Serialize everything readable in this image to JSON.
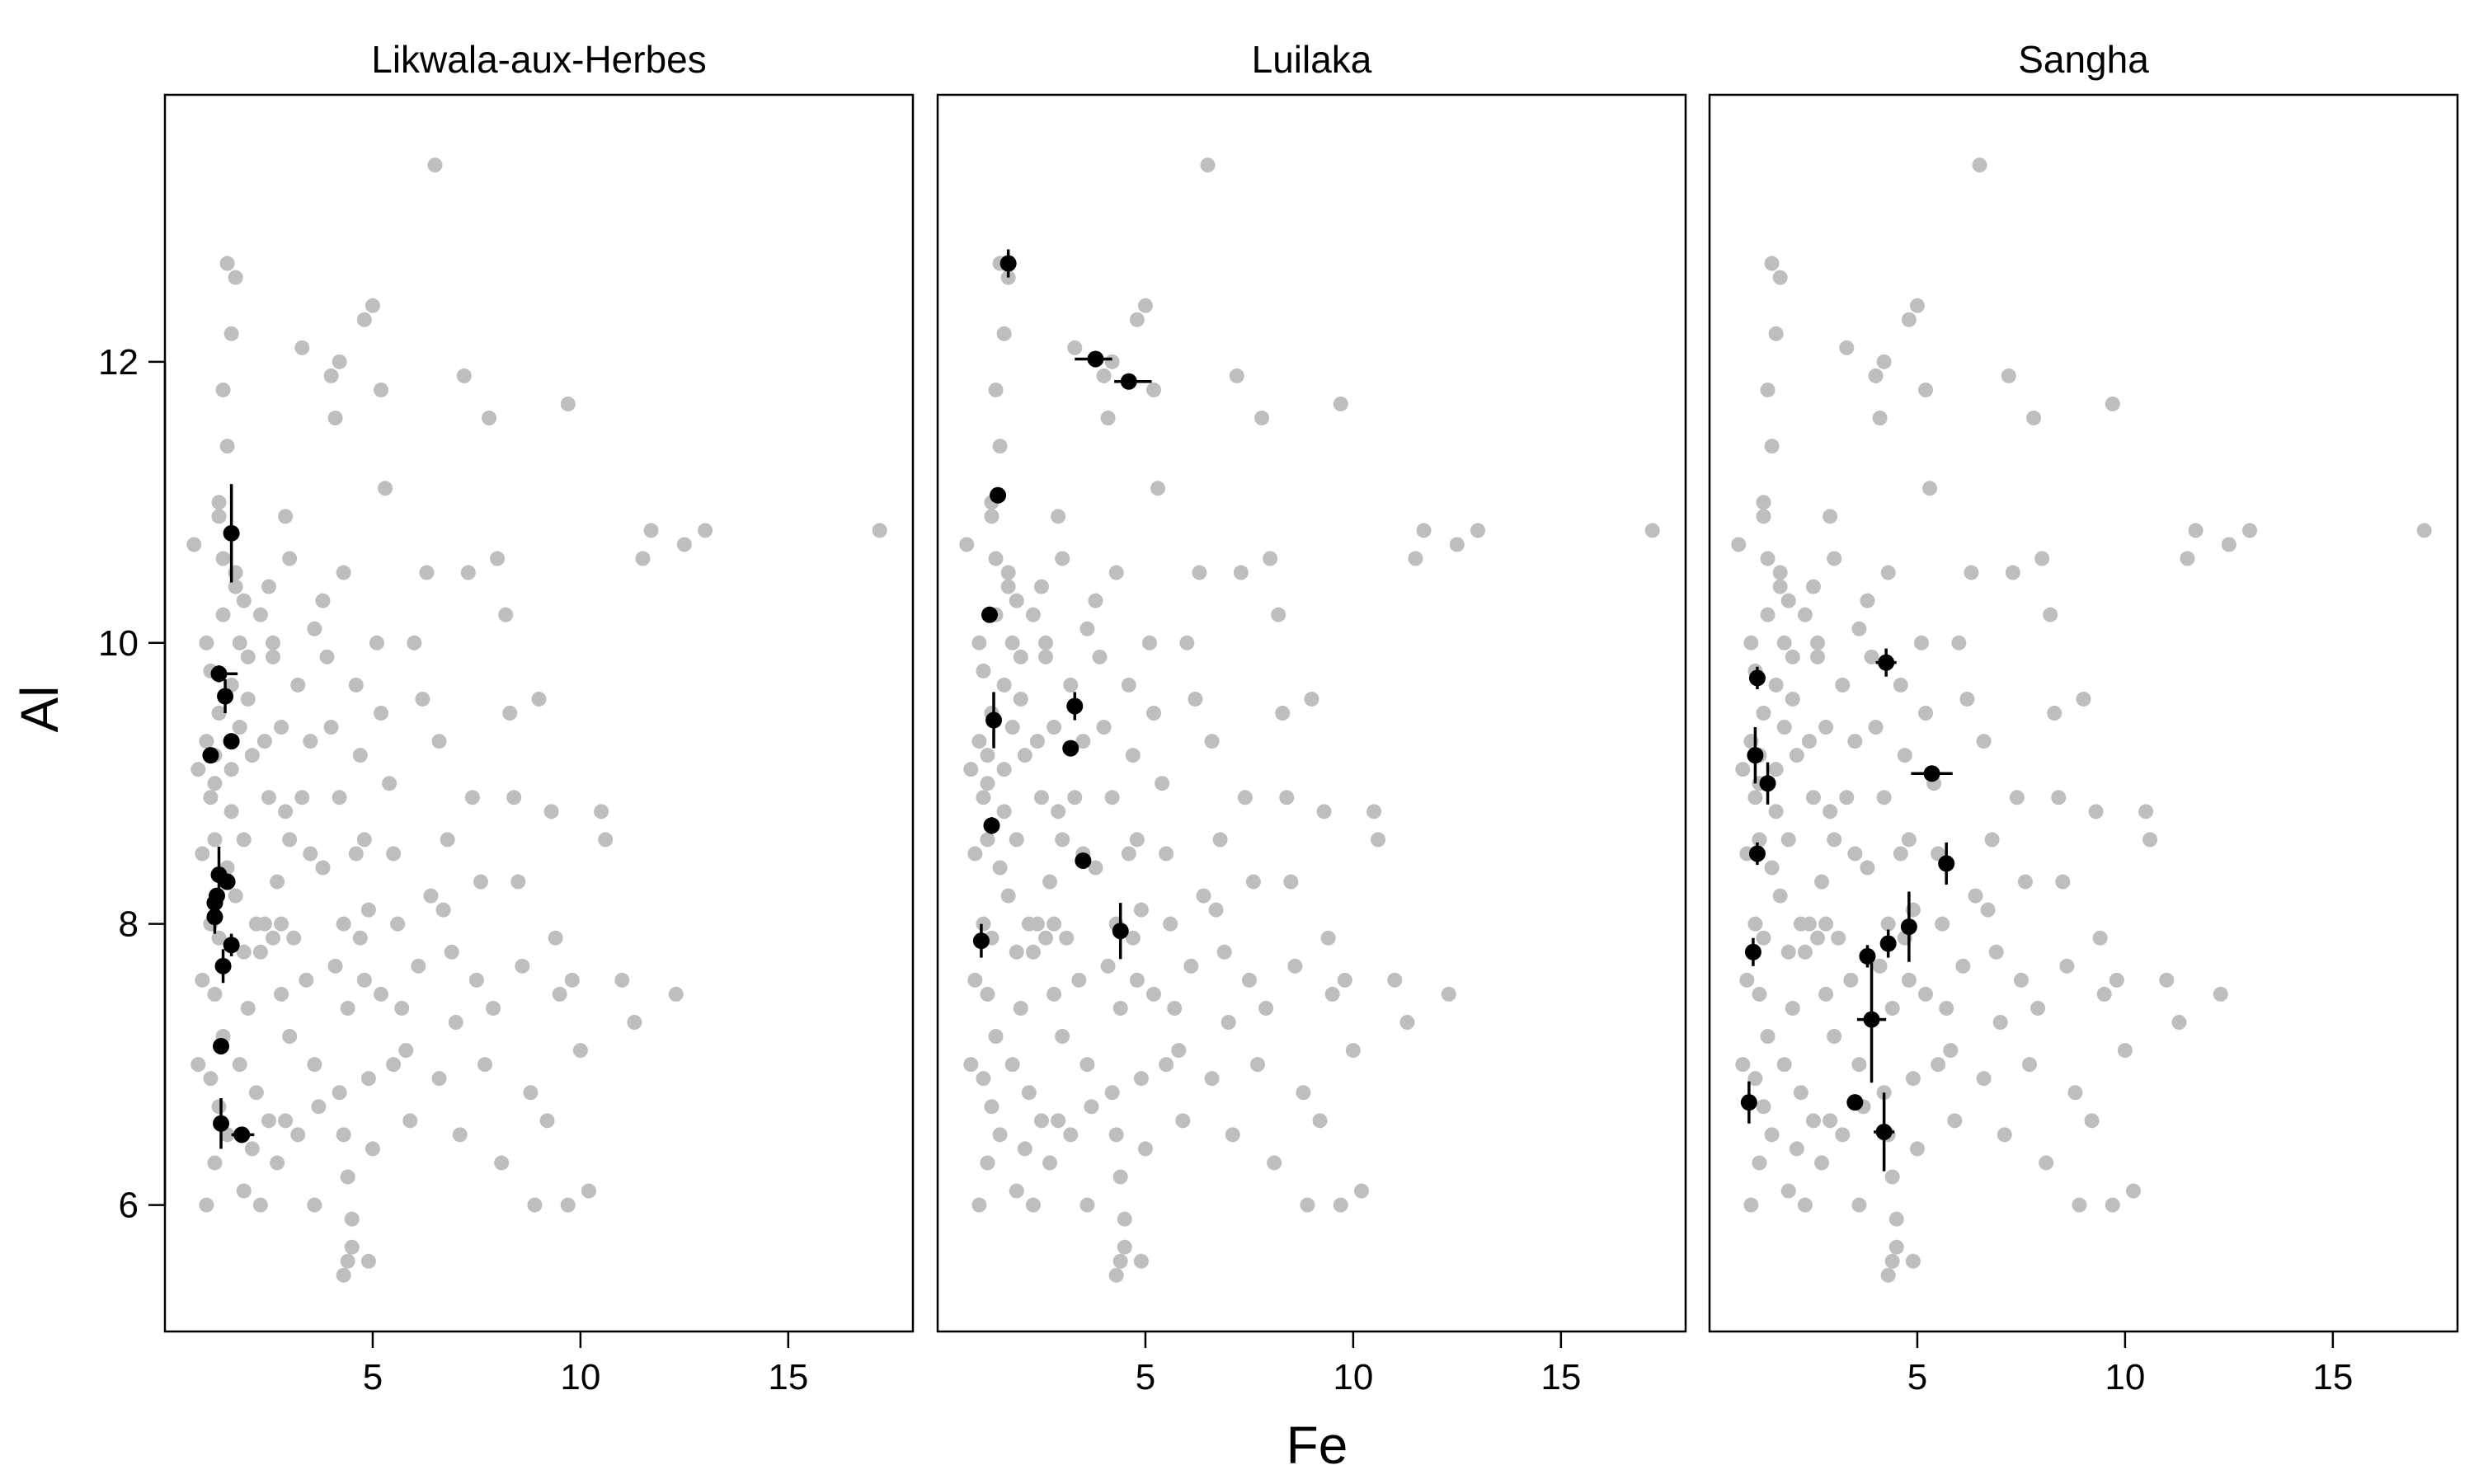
{
  "chart_data": {
    "type": "scatter",
    "xlabel": "Fe",
    "ylabel": "Al",
    "xlim": [
      0.0,
      18.0
    ],
    "ylim": [
      5.1,
      13.9
    ],
    "xticks": [
      5,
      10,
      15
    ],
    "yticks": [
      6,
      8,
      10,
      12
    ],
    "grid": false,
    "colors": {
      "background_points": "#bebebe",
      "highlight_points": "#000000",
      "frame": "#000000"
    },
    "background": [
      [
        1.2,
        9.0
      ],
      [
        1.3,
        9.5
      ],
      [
        1.1,
        9.8
      ],
      [
        1.4,
        10.2
      ],
      [
        1.2,
        8.6
      ],
      [
        1.5,
        8.4
      ],
      [
        1.1,
        8.0
      ],
      [
        1.3,
        7.9
      ],
      [
        1.6,
        8.8
      ],
      [
        1.0,
        9.3
      ],
      [
        1.2,
        7.5
      ],
      [
        1.4,
        7.2
      ],
      [
        1.1,
        6.9
      ],
      [
        1.3,
        6.7
      ],
      [
        1.5,
        6.5
      ],
      [
        1.2,
        6.3
      ],
      [
        1.0,
        6.0
      ],
      [
        1.4,
        10.6
      ],
      [
        1.3,
        11.0
      ],
      [
        1.5,
        11.4
      ],
      [
        1.4,
        11.8
      ],
      [
        1.6,
        12.2
      ],
      [
        1.5,
        12.7
      ],
      [
        1.7,
        12.6
      ],
      [
        1.3,
        10.9
      ],
      [
        1.6,
        9.1
      ],
      [
        1.8,
        9.4
      ],
      [
        1.7,
        8.2
      ],
      [
        1.9,
        7.8
      ],
      [
        0.9,
        8.5
      ],
      [
        0.8,
        9.1
      ],
      [
        0.9,
        7.6
      ],
      [
        0.8,
        7.0
      ],
      [
        0.7,
        10.7
      ],
      [
        1.0,
        10.0
      ],
      [
        1.1,
        8.9
      ],
      [
        1.2,
        9.2
      ],
      [
        1.6,
        9.7
      ],
      [
        1.8,
        10.0
      ],
      [
        1.7,
        10.4
      ],
      [
        2.0,
        9.6
      ],
      [
        2.1,
        9.2
      ],
      [
        1.9,
        8.6
      ],
      [
        2.2,
        8.0
      ],
      [
        2.0,
        7.4
      ],
      [
        1.8,
        7.0
      ],
      [
        2.3,
        7.8
      ],
      [
        2.4,
        8.0
      ],
      [
        2.2,
        6.8
      ],
      [
        2.1,
        6.4
      ],
      [
        1.9,
        6.1
      ],
      [
        2.0,
        9.9
      ],
      [
        2.3,
        10.2
      ],
      [
        2.5,
        10.4
      ],
      [
        2.6,
        9.9
      ],
      [
        2.8,
        9.4
      ],
      [
        2.9,
        8.8
      ],
      [
        2.7,
        8.3
      ],
      [
        2.6,
        7.9
      ],
      [
        2.8,
        7.5
      ],
      [
        3.0,
        7.2
      ],
      [
        2.9,
        6.6
      ],
      [
        2.7,
        6.3
      ],
      [
        3.0,
        10.6
      ],
      [
        2.9,
        10.9
      ],
      [
        3.2,
        9.7
      ],
      [
        3.3,
        12.1
      ],
      [
        3.1,
        7.9
      ],
      [
        3.4,
        7.6
      ],
      [
        3.5,
        8.5
      ],
      [
        3.6,
        7.0
      ],
      [
        3.7,
        6.7
      ],
      [
        3.8,
        8.4
      ],
      [
        3.9,
        9.9
      ],
      [
        4.1,
        11.6
      ],
      [
        4.0,
        11.9
      ],
      [
        4.2,
        12.0
      ],
      [
        4.0,
        9.4
      ],
      [
        4.2,
        8.9
      ],
      [
        4.3,
        8.0
      ],
      [
        4.1,
        7.7
      ],
      [
        4.4,
        7.4
      ],
      [
        4.2,
        6.8
      ],
      [
        4.3,
        6.5
      ],
      [
        4.4,
        6.2
      ],
      [
        4.5,
        5.9
      ],
      [
        4.4,
        5.6
      ],
      [
        4.3,
        5.5
      ],
      [
        4.5,
        5.7
      ],
      [
        4.6,
        9.7
      ],
      [
        4.7,
        9.2
      ],
      [
        4.8,
        8.6
      ],
      [
        4.9,
        8.1
      ],
      [
        4.8,
        7.6
      ],
      [
        4.9,
        6.9
      ],
      [
        5.0,
        6.4
      ],
      [
        5.0,
        12.4
      ],
      [
        4.8,
        12.3
      ],
      [
        5.2,
        11.8
      ],
      [
        5.3,
        11.1
      ],
      [
        5.1,
        10.0
      ],
      [
        5.2,
        9.5
      ],
      [
        5.4,
        9.0
      ],
      [
        5.5,
        8.5
      ],
      [
        5.6,
        8.0
      ],
      [
        5.7,
        7.4
      ],
      [
        5.8,
        7.1
      ],
      [
        6.0,
        10.0
      ],
      [
        6.2,
        9.6
      ],
      [
        6.3,
        10.5
      ],
      [
        6.5,
        13.4
      ],
      [
        6.6,
        9.3
      ],
      [
        6.8,
        8.6
      ],
      [
        6.7,
        8.1
      ],
      [
        6.9,
        7.8
      ],
      [
        7.0,
        7.3
      ],
      [
        7.2,
        11.9
      ],
      [
        7.3,
        10.5
      ],
      [
        7.4,
        8.9
      ],
      [
        7.6,
        8.3
      ],
      [
        7.5,
        7.6
      ],
      [
        7.7,
        7.0
      ],
      [
        7.8,
        11.6
      ],
      [
        8.0,
        10.6
      ],
      [
        8.2,
        10.2
      ],
      [
        8.3,
        9.5
      ],
      [
        8.4,
        8.9
      ],
      [
        8.5,
        8.3
      ],
      [
        8.6,
        7.7
      ],
      [
        8.8,
        6.8
      ],
      [
        8.9,
        6.0
      ],
      [
        9.0,
        9.6
      ],
      [
        9.3,
        8.8
      ],
      [
        9.4,
        7.9
      ],
      [
        9.5,
        7.5
      ],
      [
        9.7,
        11.7
      ],
      [
        9.8,
        7.6
      ],
      [
        10.0,
        7.1
      ],
      [
        10.2,
        6.1
      ],
      [
        10.5,
        8.8
      ],
      [
        10.6,
        8.6
      ],
      [
        11.0,
        7.6
      ],
      [
        11.3,
        7.3
      ],
      [
        11.5,
        10.6
      ],
      [
        11.7,
        10.8
      ],
      [
        12.3,
        7.5
      ],
      [
        12.5,
        10.7
      ],
      [
        13.0,
        10.8
      ],
      [
        17.2,
        10.8
      ],
      [
        3.5,
        9.3
      ],
      [
        3.3,
        8.9
      ],
      [
        3.0,
        8.6
      ],
      [
        2.5,
        8.9
      ],
      [
        2.4,
        9.3
      ],
      [
        1.9,
        10.3
      ],
      [
        1.7,
        10.5
      ],
      [
        2.6,
        10.0
      ],
      [
        2.5,
        6.6
      ],
      [
        2.3,
        6.0
      ],
      [
        4.6,
        8.5
      ],
      [
        4.7,
        7.9
      ],
      [
        5.2,
        7.5
      ],
      [
        5.5,
        7.0
      ],
      [
        5.9,
        6.6
      ],
      [
        6.1,
        7.7
      ],
      [
        6.4,
        8.2
      ],
      [
        6.6,
        6.9
      ],
      [
        7.1,
        6.5
      ],
      [
        7.9,
        7.4
      ],
      [
        8.1,
        6.3
      ],
      [
        9.2,
        6.6
      ],
      [
        9.7,
        6.0
      ],
      [
        3.8,
        10.3
      ],
      [
        3.6,
        10.1
      ],
      [
        4.3,
        10.5
      ],
      [
        3.2,
        6.5
      ],
      [
        3.6,
        6.0
      ],
      [
        4.9,
        5.6
      ],
      [
        2.8,
        8.0
      ]
    ],
    "panels": [
      {
        "title": "Likwala-aux-Herbes",
        "points": [
          {
            "x": 1.6,
            "y": 10.78,
            "xerr": [
              0,
              0
            ],
            "yerr": [
              0.35,
              0.35
            ]
          },
          {
            "x": 1.3,
            "y": 9.78,
            "xerr": [
              0.15,
              0.45
            ],
            "yerr": [
              0.06,
              0.06
            ]
          },
          {
            "x": 1.45,
            "y": 9.62,
            "xerr": [
              0,
              0
            ],
            "yerr": [
              0.12,
              0.12
            ]
          },
          {
            "x": 1.6,
            "y": 9.3,
            "xerr": [
              0,
              0
            ],
            "yerr": [
              0,
              0
            ]
          },
          {
            "x": 1.1,
            "y": 9.2,
            "xerr": [
              0,
              0
            ],
            "yerr": [
              0,
              0
            ]
          },
          {
            "x": 1.3,
            "y": 8.35,
            "xerr": [
              0,
              0
            ],
            "yerr": [
              0.2,
              0.2
            ]
          },
          {
            "x": 1.5,
            "y": 8.3,
            "xerr": [
              0,
              0
            ],
            "yerr": [
              0.05,
              0.05
            ]
          },
          {
            "x": 1.25,
            "y": 8.2,
            "xerr": [
              0,
              0
            ],
            "yerr": [
              0.05,
              0.05
            ]
          },
          {
            "x": 1.2,
            "y": 8.15,
            "xerr": [
              0,
              0
            ],
            "yerr": [
              0.1,
              0.1
            ]
          },
          {
            "x": 1.2,
            "y": 8.05,
            "xerr": [
              0,
              0
            ],
            "yerr": [
              0.12,
              0.12
            ]
          },
          {
            "x": 1.6,
            "y": 7.85,
            "xerr": [
              0,
              0
            ],
            "yerr": [
              0.08,
              0.08
            ]
          },
          {
            "x": 1.4,
            "y": 7.7,
            "xerr": [
              0,
              0
            ],
            "yerr": [
              0.12,
              0.12
            ]
          },
          {
            "x": 1.35,
            "y": 7.13,
            "xerr": [
              0,
              0
            ],
            "yerr": [
              0,
              0
            ]
          },
          {
            "x": 1.35,
            "y": 6.58,
            "xerr": [
              0,
              0
            ],
            "yerr": [
              0.18,
              0.18
            ]
          },
          {
            "x": 1.85,
            "y": 6.5,
            "xerr": [
              0.25,
              0.3
            ],
            "yerr": [
              0.04,
              0.04
            ]
          }
        ]
      },
      {
        "title": "Luilaka",
        "points": [
          {
            "x": 1.7,
            "y": 12.7,
            "xerr": [
              0,
              0
            ],
            "yerr": [
              0.1,
              0.1
            ]
          },
          {
            "x": 3.8,
            "y": 12.02,
            "xerr": [
              0.5,
              0.4
            ],
            "yerr": [
              0,
              0
            ]
          },
          {
            "x": 4.6,
            "y": 11.86,
            "xerr": [
              0.35,
              0.55
            ],
            "yerr": [
              0,
              0
            ]
          },
          {
            "x": 1.45,
            "y": 11.05,
            "xerr": [
              0,
              0
            ],
            "yerr": [
              0,
              0
            ]
          },
          {
            "x": 1.25,
            "y": 10.2,
            "xerr": [
              0,
              0
            ],
            "yerr": [
              0,
              0
            ]
          },
          {
            "x": 3.3,
            "y": 9.55,
            "xerr": [
              0,
              0
            ],
            "yerr": [
              0.1,
              0.1
            ]
          },
          {
            "x": 1.35,
            "y": 9.45,
            "xerr": [
              0,
              0
            ],
            "yerr": [
              0.2,
              0.2
            ]
          },
          {
            "x": 3.2,
            "y": 9.25,
            "xerr": [
              0,
              0
            ],
            "yerr": [
              0,
              0
            ]
          },
          {
            "x": 1.3,
            "y": 8.7,
            "xerr": [
              0,
              0
            ],
            "yerr": [
              0.06,
              0.06
            ]
          },
          {
            "x": 3.5,
            "y": 8.45,
            "xerr": [
              0.15,
              0.05
            ],
            "yerr": [
              0,
              0
            ]
          },
          {
            "x": 4.4,
            "y": 7.95,
            "xerr": [
              0,
              0
            ],
            "yerr": [
              0.2,
              0.2
            ]
          },
          {
            "x": 1.05,
            "y": 7.88,
            "xerr": [
              0,
              0
            ],
            "yerr": [
              0.12,
              0.12
            ]
          }
        ]
      },
      {
        "title": "Sangha",
        "points": [
          {
            "x": 4.25,
            "y": 9.86,
            "xerr": [
              0.25,
              0.25
            ],
            "yerr": [
              0.1,
              0.1
            ]
          },
          {
            "x": 1.15,
            "y": 9.75,
            "xerr": [
              0,
              0
            ],
            "yerr": [
              0.08,
              0.08
            ]
          },
          {
            "x": 1.1,
            "y": 9.2,
            "xerr": [
              0,
              0
            ],
            "yerr": [
              0.2,
              0.2
            ]
          },
          {
            "x": 5.35,
            "y": 9.07,
            "xerr": [
              0.5,
              0.5
            ],
            "yerr": [
              0,
              0
            ]
          },
          {
            "x": 1.4,
            "y": 9.0,
            "xerr": [
              0,
              0
            ],
            "yerr": [
              0.15,
              0.15
            ]
          },
          {
            "x": 1.15,
            "y": 8.5,
            "xerr": [
              0,
              0
            ],
            "yerr": [
              0.08,
              0.08
            ]
          },
          {
            "x": 5.7,
            "y": 8.43,
            "xerr": [
              0,
              0
            ],
            "yerr": [
              0.15,
              0.15
            ]
          },
          {
            "x": 4.8,
            "y": 7.98,
            "xerr": [
              0,
              0
            ],
            "yerr": [
              0.25,
              0.25
            ]
          },
          {
            "x": 4.3,
            "y": 7.86,
            "xerr": [
              0,
              0
            ],
            "yerr": [
              0.1,
              0.1
            ]
          },
          {
            "x": 1.05,
            "y": 7.8,
            "xerr": [
              0,
              0
            ],
            "yerr": [
              0.1,
              0.1
            ]
          },
          {
            "x": 3.8,
            "y": 7.77,
            "xerr": [
              0,
              0
            ],
            "yerr": [
              0.08,
              0.08
            ]
          },
          {
            "x": 3.9,
            "y": 7.32,
            "xerr": [
              0.35,
              0.35
            ],
            "yerr": [
              0.45,
              0.45
            ]
          },
          {
            "x": 0.95,
            "y": 6.73,
            "xerr": [
              0,
              0
            ],
            "yerr": [
              0.15,
              0.15
            ]
          },
          {
            "x": 3.5,
            "y": 6.73,
            "xerr": [
              0.05,
              0.05
            ],
            "yerr": [
              0,
              0
            ]
          },
          {
            "x": 4.2,
            "y": 6.52,
            "xerr": [
              0.25,
              0.25
            ],
            "yerr": [
              0.28,
              0.28
            ]
          }
        ]
      }
    ]
  }
}
